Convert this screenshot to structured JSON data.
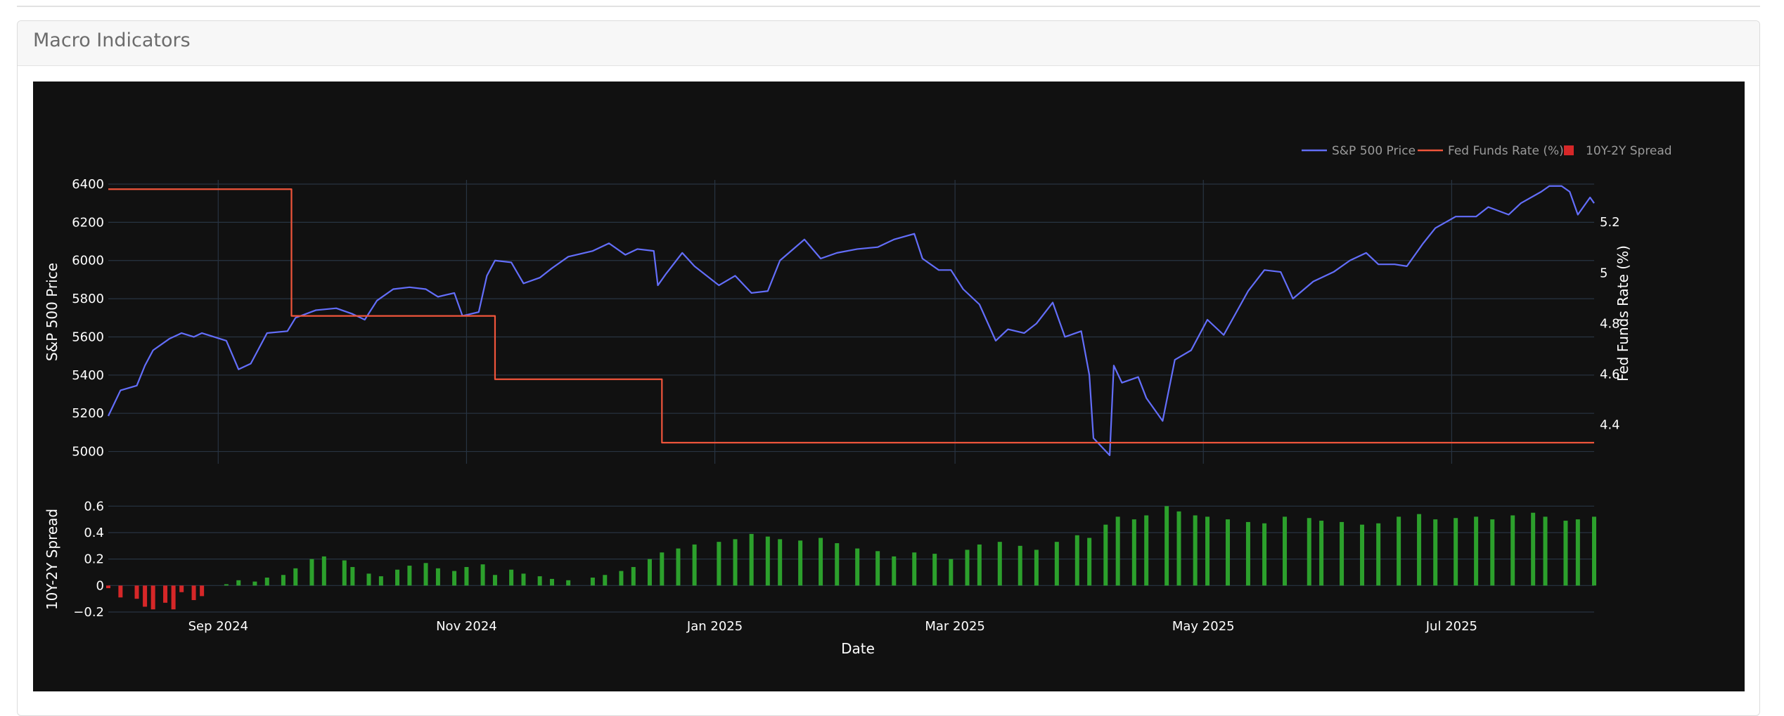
{
  "card": {
    "title": "Macro Indicators"
  },
  "colors": {
    "sp500": "#636efa",
    "fed": "#ef553b",
    "spread_pos": "#2ca02c",
    "spread_neg": "#d62728",
    "grid": "#283442",
    "background": "#111111"
  },
  "chart_data": {
    "type": "line",
    "x_axis": {
      "label": "Date",
      "range": [
        "2024-08-05",
        "2025-08-05"
      ],
      "ticks": [
        {
          "date": "2024-09-01",
          "label": "Sep 2024"
        },
        {
          "date": "2024-11-01",
          "label": "Nov 2024"
        },
        {
          "date": "2025-01-01",
          "label": "Jan 2025"
        },
        {
          "date": "2025-03-01",
          "label": "Mar 2025"
        },
        {
          "date": "2025-05-01",
          "label": "May 2025"
        },
        {
          "date": "2025-07-01",
          "label": "Jul 2025"
        }
      ]
    },
    "y_left": {
      "label": "S&P 500 Price",
      "range": [
        4980,
        6400
      ],
      "ticks": [
        5000,
        5200,
        5400,
        5600,
        5800,
        6000,
        6200,
        6400
      ]
    },
    "y_right": {
      "label": "Fed Funds Rate (%)",
      "range": [
        4.28,
        5.35
      ],
      "ticks": [
        4.4,
        4.6,
        4.8,
        5.0,
        5.2
      ],
      "tick_labels": [
        "4.4",
        "4.6",
        "4.8",
        "5",
        "5.2"
      ]
    },
    "y_bottom": {
      "label": "10Y-2Y Spread",
      "range": [
        -0.2,
        0.66
      ],
      "ticks": [
        -0.2,
        0,
        0.2,
        0.4,
        0.6
      ],
      "tick_labels": [
        "−0.2",
        "0",
        "0.2",
        "0.4",
        "0.6"
      ]
    },
    "legend": {
      "placement": "top-right",
      "entries": [
        {
          "name": "S&P 500 Price",
          "kind": "line",
          "color": "#636efa"
        },
        {
          "name": "Fed Funds Rate (%)",
          "kind": "line",
          "color": "#ef553b"
        },
        {
          "name": "10Y-2Y Spread",
          "kind": "bar",
          "color": "#d62728"
        }
      ]
    },
    "series": [
      {
        "name": "S&P 500 Price",
        "axis": "left",
        "points": [
          [
            "2024-08-05",
            5186
          ],
          [
            "2024-08-08",
            5320
          ],
          [
            "2024-08-12",
            5345
          ],
          [
            "2024-08-14",
            5450
          ],
          [
            "2024-08-16",
            5530
          ],
          [
            "2024-08-20",
            5590
          ],
          [
            "2024-08-23",
            5620
          ],
          [
            "2024-08-26",
            5600
          ],
          [
            "2024-08-28",
            5620
          ],
          [
            "2024-09-03",
            5580
          ],
          [
            "2024-09-06",
            5430
          ],
          [
            "2024-09-09",
            5460
          ],
          [
            "2024-09-13",
            5620
          ],
          [
            "2024-09-18",
            5630
          ],
          [
            "2024-09-20",
            5700
          ],
          [
            "2024-09-25",
            5740
          ],
          [
            "2024-09-30",
            5750
          ],
          [
            "2024-10-04",
            5720
          ],
          [
            "2024-10-07",
            5690
          ],
          [
            "2024-10-10",
            5790
          ],
          [
            "2024-10-14",
            5850
          ],
          [
            "2024-10-18",
            5860
          ],
          [
            "2024-10-22",
            5850
          ],
          [
            "2024-10-25",
            5810
          ],
          [
            "2024-10-29",
            5830
          ],
          [
            "2024-10-31",
            5710
          ],
          [
            "2024-11-04",
            5730
          ],
          [
            "2024-11-06",
            5920
          ],
          [
            "2024-11-08",
            6000
          ],
          [
            "2024-11-12",
            5990
          ],
          [
            "2024-11-15",
            5880
          ],
          [
            "2024-11-19",
            5910
          ],
          [
            "2024-11-22",
            5960
          ],
          [
            "2024-11-26",
            6020
          ],
          [
            "2024-12-02",
            6050
          ],
          [
            "2024-12-06",
            6090
          ],
          [
            "2024-12-10",
            6030
          ],
          [
            "2024-12-13",
            6060
          ],
          [
            "2024-12-17",
            6050
          ],
          [
            "2024-12-18",
            5870
          ],
          [
            "2024-12-20",
            5930
          ],
          [
            "2024-12-24",
            6040
          ],
          [
            "2024-12-27",
            5970
          ],
          [
            "2025-01-02",
            5870
          ],
          [
            "2025-01-06",
            5920
          ],
          [
            "2025-01-10",
            5830
          ],
          [
            "2025-01-14",
            5840
          ],
          [
            "2025-01-17",
            6000
          ],
          [
            "2025-01-23",
            6110
          ],
          [
            "2025-01-27",
            6010
          ],
          [
            "2025-01-31",
            6040
          ],
          [
            "2025-02-05",
            6060
          ],
          [
            "2025-02-10",
            6070
          ],
          [
            "2025-02-14",
            6110
          ],
          [
            "2025-02-19",
            6140
          ],
          [
            "2025-02-21",
            6010
          ],
          [
            "2025-02-25",
            5950
          ],
          [
            "2025-02-28",
            5950
          ],
          [
            "2025-03-03",
            5850
          ],
          [
            "2025-03-07",
            5770
          ],
          [
            "2025-03-11",
            5580
          ],
          [
            "2025-03-14",
            5640
          ],
          [
            "2025-03-18",
            5620
          ],
          [
            "2025-03-21",
            5670
          ],
          [
            "2025-03-25",
            5780
          ],
          [
            "2025-03-28",
            5600
          ],
          [
            "2025-04-01",
            5630
          ],
          [
            "2025-04-03",
            5400
          ],
          [
            "2025-04-04",
            5070
          ],
          [
            "2025-04-08",
            4980
          ],
          [
            "2025-04-09",
            5450
          ],
          [
            "2025-04-11",
            5360
          ],
          [
            "2025-04-15",
            5390
          ],
          [
            "2025-04-17",
            5280
          ],
          [
            "2025-04-21",
            5160
          ],
          [
            "2025-04-24",
            5480
          ],
          [
            "2025-04-28",
            5530
          ],
          [
            "2025-05-02",
            5690
          ],
          [
            "2025-05-06",
            5610
          ],
          [
            "2025-05-12",
            5840
          ],
          [
            "2025-05-16",
            5950
          ],
          [
            "2025-05-20",
            5940
          ],
          [
            "2025-05-23",
            5800
          ],
          [
            "2025-05-28",
            5890
          ],
          [
            "2025-06-02",
            5940
          ],
          [
            "2025-06-06",
            6000
          ],
          [
            "2025-06-10",
            6040
          ],
          [
            "2025-06-13",
            5980
          ],
          [
            "2025-06-17",
            5980
          ],
          [
            "2025-06-20",
            5970
          ],
          [
            "2025-06-24",
            6090
          ],
          [
            "2025-06-27",
            6170
          ],
          [
            "2025-07-02",
            6230
          ],
          [
            "2025-07-07",
            6230
          ],
          [
            "2025-07-10",
            6280
          ],
          [
            "2025-07-15",
            6240
          ],
          [
            "2025-07-18",
            6300
          ],
          [
            "2025-07-23",
            6360
          ],
          [
            "2025-07-25",
            6390
          ],
          [
            "2025-07-28",
            6390
          ],
          [
            "2025-07-30",
            6360
          ],
          [
            "2025-08-01",
            6240
          ],
          [
            "2025-08-04",
            6330
          ],
          [
            "2025-08-05",
            6300
          ]
        ]
      },
      {
        "name": "Fed Funds Rate (%)",
        "axis": "right",
        "step": true,
        "points": [
          [
            "2024-08-05",
            5.33
          ],
          [
            "2024-09-19",
            4.83
          ],
          [
            "2024-11-08",
            4.58
          ],
          [
            "2024-12-19",
            4.33
          ],
          [
            "2025-08-05",
            4.33
          ]
        ]
      },
      {
        "name": "10Y-2Y Spread",
        "axis": "bottom",
        "type": "bar",
        "points": [
          [
            "2024-08-05",
            -0.02
          ],
          [
            "2024-08-08",
            -0.09
          ],
          [
            "2024-08-12",
            -0.1
          ],
          [
            "2024-08-14",
            -0.16
          ],
          [
            "2024-08-16",
            -0.18
          ],
          [
            "2024-08-19",
            -0.13
          ],
          [
            "2024-08-21",
            -0.18
          ],
          [
            "2024-08-23",
            -0.05
          ],
          [
            "2024-08-26",
            -0.11
          ],
          [
            "2024-08-28",
            -0.08
          ],
          [
            "2024-09-03",
            0.01
          ],
          [
            "2024-09-06",
            0.04
          ],
          [
            "2024-09-10",
            0.03
          ],
          [
            "2024-09-13",
            0.06
          ],
          [
            "2024-09-17",
            0.08
          ],
          [
            "2024-09-20",
            0.13
          ],
          [
            "2024-09-24",
            0.2
          ],
          [
            "2024-09-27",
            0.22
          ],
          [
            "2024-10-02",
            0.19
          ],
          [
            "2024-10-04",
            0.14
          ],
          [
            "2024-10-08",
            0.09
          ],
          [
            "2024-10-11",
            0.07
          ],
          [
            "2024-10-15",
            0.12
          ],
          [
            "2024-10-18",
            0.15
          ],
          [
            "2024-10-22",
            0.17
          ],
          [
            "2024-10-25",
            0.13
          ],
          [
            "2024-10-29",
            0.11
          ],
          [
            "2024-11-01",
            0.14
          ],
          [
            "2024-11-05",
            0.16
          ],
          [
            "2024-11-08",
            0.08
          ],
          [
            "2024-11-12",
            0.12
          ],
          [
            "2024-11-15",
            0.09
          ],
          [
            "2024-11-19",
            0.07
          ],
          [
            "2024-11-22",
            0.05
          ],
          [
            "2024-11-26",
            0.04
          ],
          [
            "2024-12-02",
            0.06
          ],
          [
            "2024-12-05",
            0.08
          ],
          [
            "2024-12-09",
            0.11
          ],
          [
            "2024-12-12",
            0.14
          ],
          [
            "2024-12-16",
            0.2
          ],
          [
            "2024-12-19",
            0.25
          ],
          [
            "2024-12-23",
            0.28
          ],
          [
            "2024-12-27",
            0.31
          ],
          [
            "2025-01-02",
            0.33
          ],
          [
            "2025-01-06",
            0.35
          ],
          [
            "2025-01-10",
            0.39
          ],
          [
            "2025-01-14",
            0.37
          ],
          [
            "2025-01-17",
            0.35
          ],
          [
            "2025-01-22",
            0.34
          ],
          [
            "2025-01-27",
            0.36
          ],
          [
            "2025-01-31",
            0.32
          ],
          [
            "2025-02-05",
            0.28
          ],
          [
            "2025-02-10",
            0.26
          ],
          [
            "2025-02-14",
            0.22
          ],
          [
            "2025-02-19",
            0.25
          ],
          [
            "2025-02-24",
            0.24
          ],
          [
            "2025-02-28",
            0.2
          ],
          [
            "2025-03-04",
            0.27
          ],
          [
            "2025-03-07",
            0.31
          ],
          [
            "2025-03-12",
            0.33
          ],
          [
            "2025-03-17",
            0.3
          ],
          [
            "2025-03-21",
            0.27
          ],
          [
            "2025-03-26",
            0.33
          ],
          [
            "2025-03-31",
            0.38
          ],
          [
            "2025-04-03",
            0.36
          ],
          [
            "2025-04-07",
            0.46
          ],
          [
            "2025-04-10",
            0.52
          ],
          [
            "2025-04-14",
            0.5
          ],
          [
            "2025-04-17",
            0.53
          ],
          [
            "2025-04-22",
            0.6
          ],
          [
            "2025-04-25",
            0.56
          ],
          [
            "2025-04-29",
            0.53
          ],
          [
            "2025-05-02",
            0.52
          ],
          [
            "2025-05-07",
            0.5
          ],
          [
            "2025-05-12",
            0.48
          ],
          [
            "2025-05-16",
            0.47
          ],
          [
            "2025-05-21",
            0.52
          ],
          [
            "2025-05-27",
            0.51
          ],
          [
            "2025-05-30",
            0.49
          ],
          [
            "2025-06-04",
            0.48
          ],
          [
            "2025-06-09",
            0.46
          ],
          [
            "2025-06-13",
            0.47
          ],
          [
            "2025-06-18",
            0.52
          ],
          [
            "2025-06-23",
            0.54
          ],
          [
            "2025-06-27",
            0.5
          ],
          [
            "2025-07-02",
            0.51
          ],
          [
            "2025-07-07",
            0.52
          ],
          [
            "2025-07-11",
            0.5
          ],
          [
            "2025-07-16",
            0.53
          ],
          [
            "2025-07-21",
            0.55
          ],
          [
            "2025-07-24",
            0.52
          ],
          [
            "2025-07-29",
            0.49
          ],
          [
            "2025-08-01",
            0.5
          ],
          [
            "2025-08-05",
            0.52
          ]
        ]
      }
    ]
  }
}
